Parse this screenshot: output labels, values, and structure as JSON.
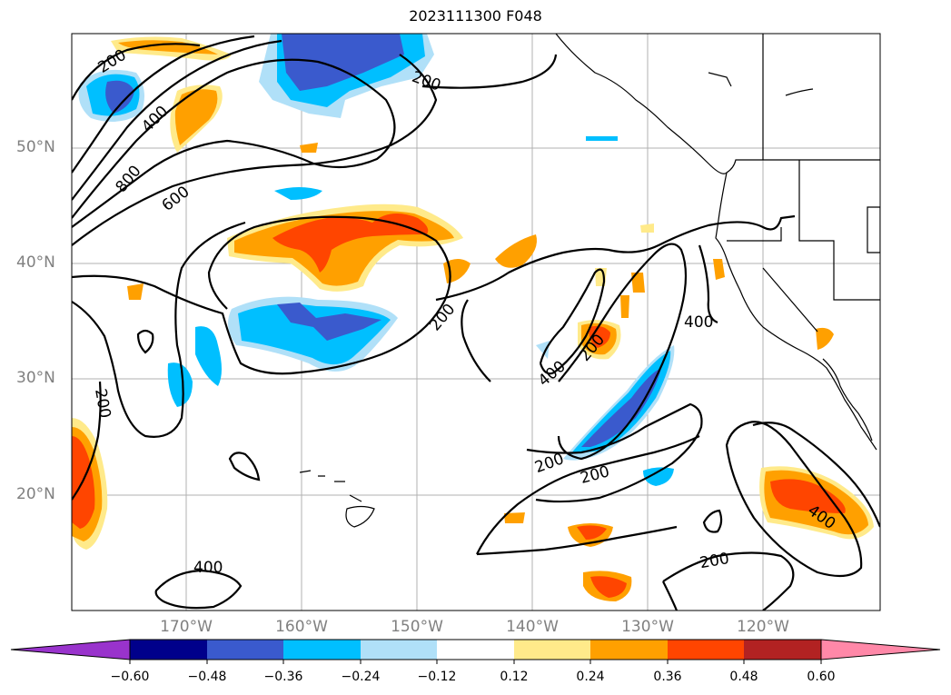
{
  "title": "2023111300 F048",
  "map": {
    "lat_labels": [
      "50°N",
      "40°N",
      "30°N",
      "20°N"
    ],
    "lon_labels": [
      "170°W",
      "160°W",
      "150°W",
      "140°W",
      "130°W",
      "120°W"
    ],
    "contour_labels": [
      "200",
      "400",
      "800",
      "600",
      "200",
      "200",
      "400",
      "200",
      "400",
      "200",
      "200",
      "200",
      "400",
      "400",
      "200",
      "200"
    ]
  },
  "colorbar": {
    "ticks": [
      "−0.60",
      "−0.48",
      "−0.36",
      "−0.24",
      "−0.12",
      "0.12",
      "0.24",
      "0.36",
      "0.48",
      "0.60"
    ],
    "colors": [
      "#9933cc",
      "#00008b",
      "#3a5acd",
      "#00bfff",
      "#b0e0f8",
      "#ffffff",
      "#ffea8a",
      "#ffa000",
      "#ff4500",
      "#b22222",
      "#ff88a8"
    ]
  }
}
